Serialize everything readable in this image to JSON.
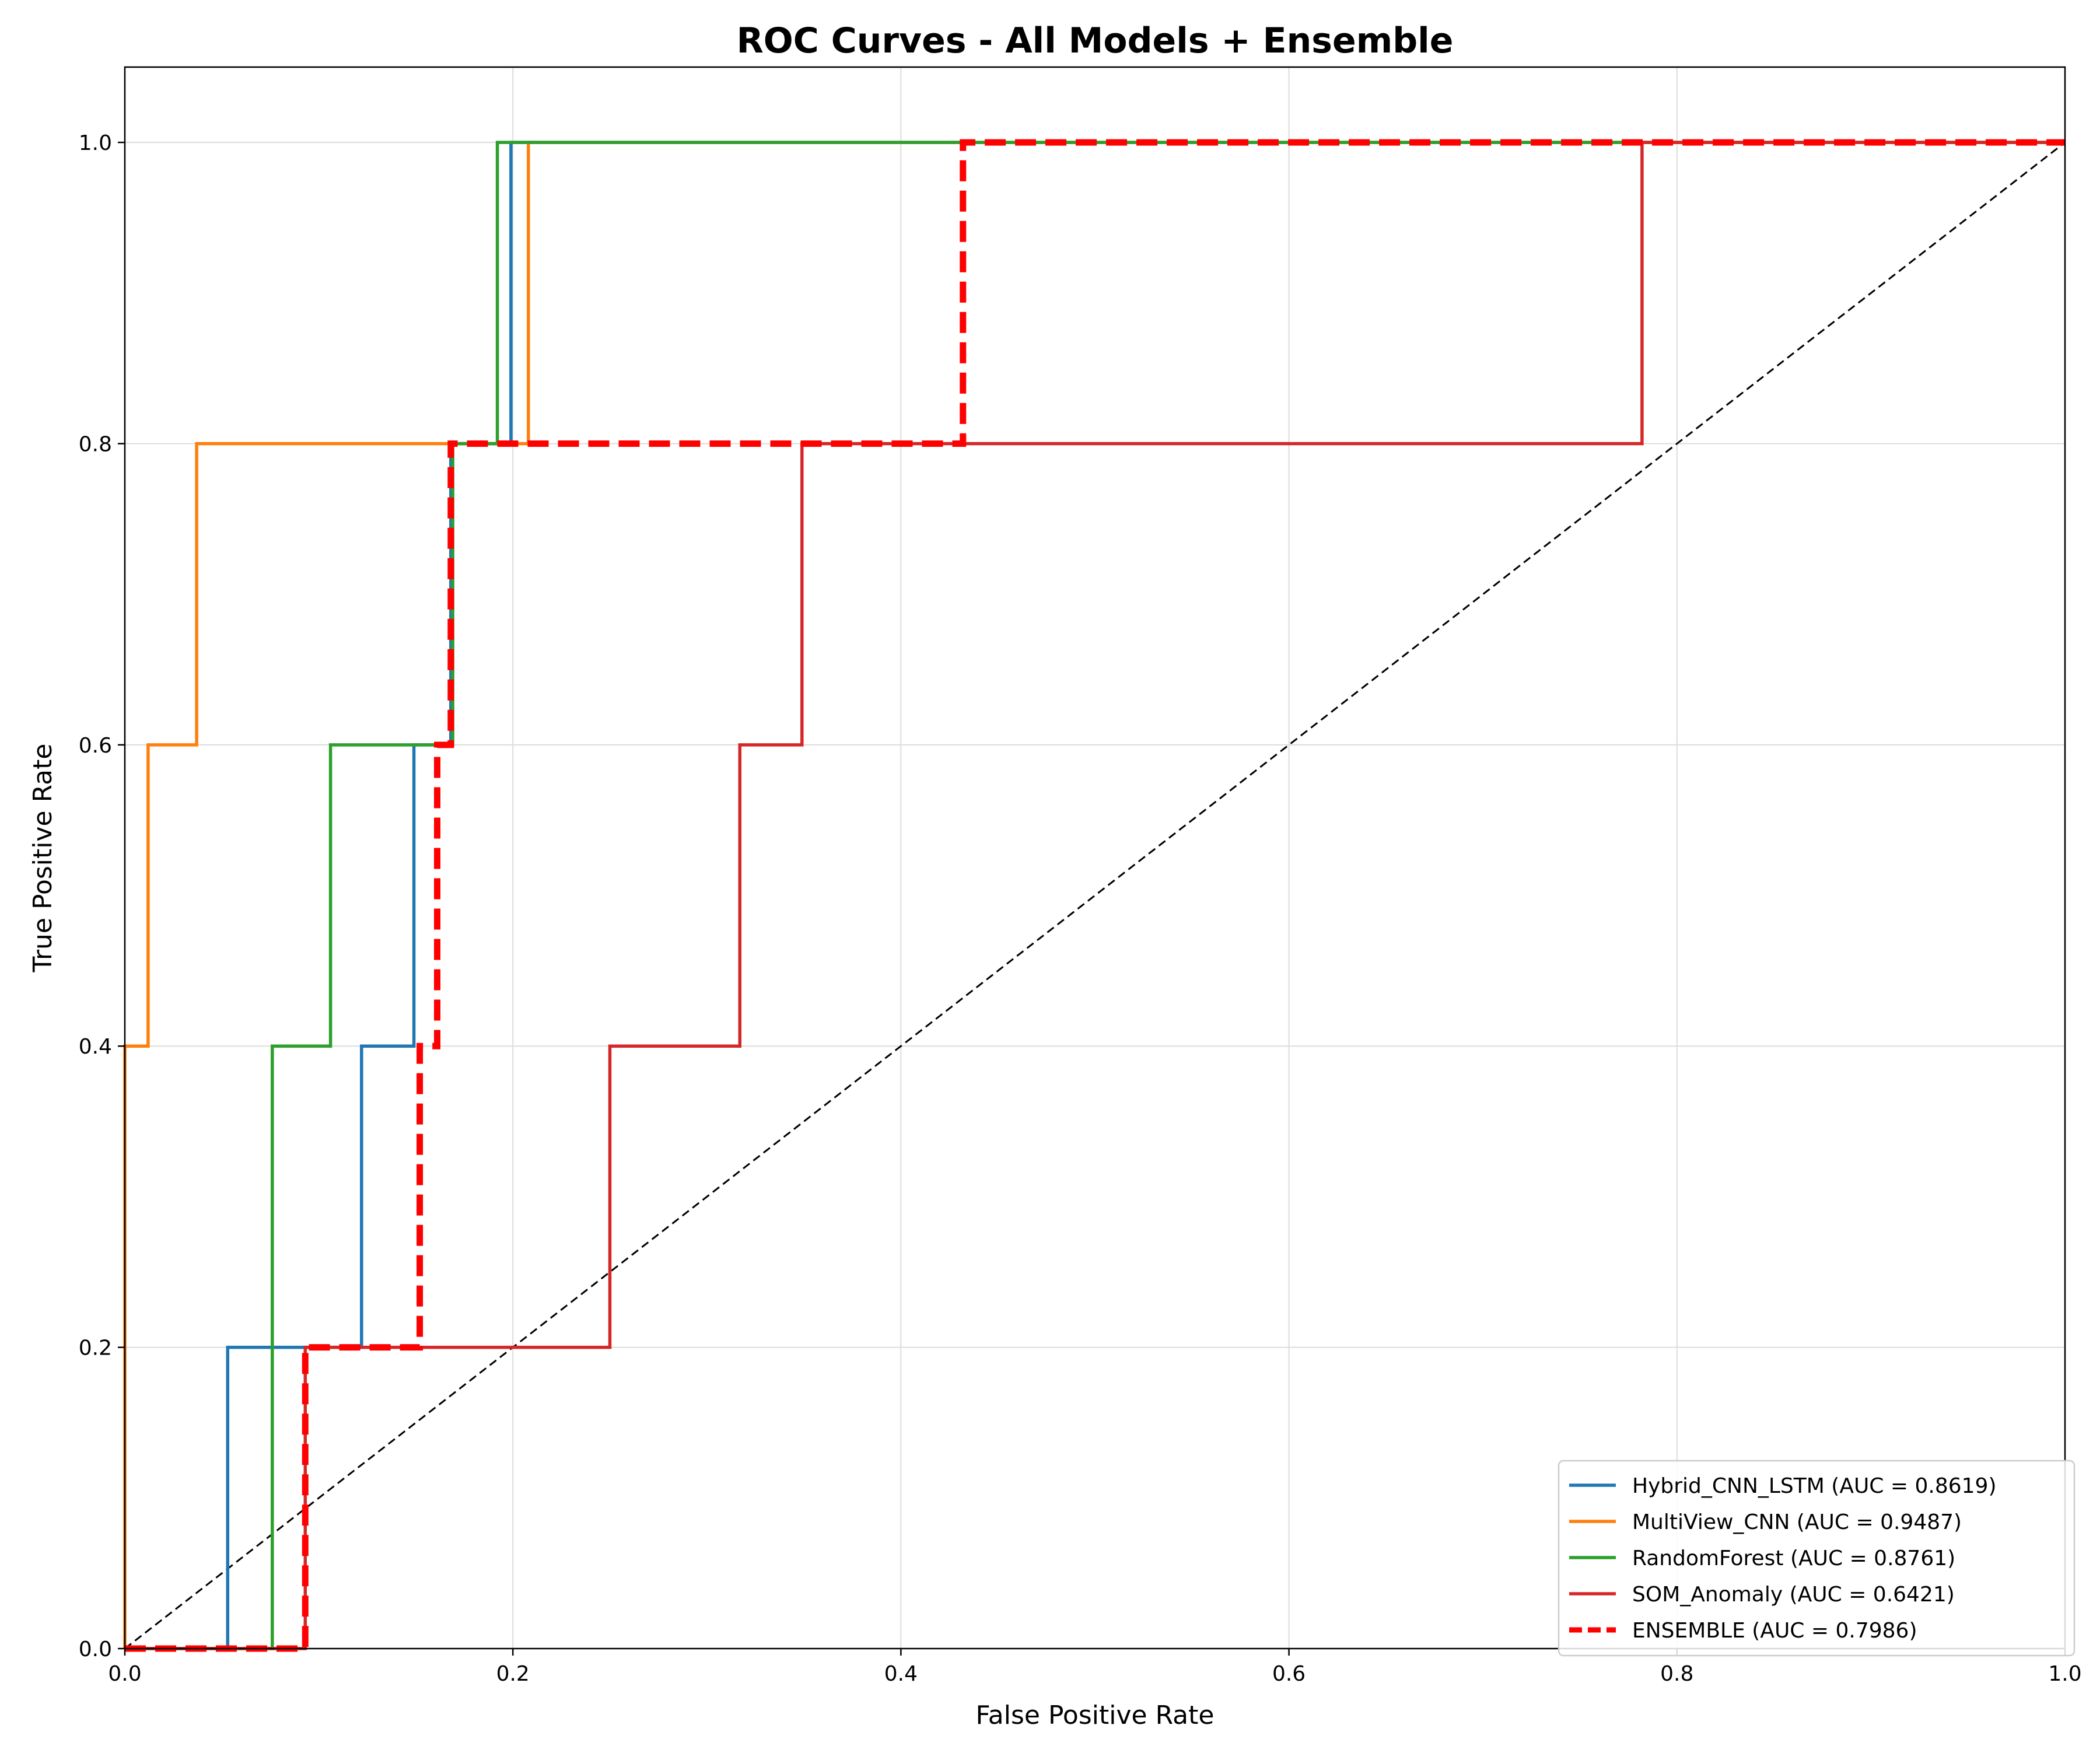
{
  "chart_data": {
    "type": "line",
    "title": "ROC Curves - All Models + Ensemble",
    "xlabel": "False Positive Rate",
    "ylabel": "True Positive Rate",
    "xlim": [
      0,
      1
    ],
    "ylim": [
      0,
      1.05
    ],
    "xticks": [
      0.0,
      0.2,
      0.4,
      0.6,
      0.8,
      1.0
    ],
    "yticks": [
      0.0,
      0.2,
      0.4,
      0.6,
      0.8,
      1.0
    ],
    "xtick_labels": [
      "0.0",
      "0.2",
      "0.4",
      "0.6",
      "0.8",
      "1.0"
    ],
    "ytick_labels": [
      "0.0",
      "0.2",
      "0.4",
      "0.6",
      "0.8",
      "1.0"
    ],
    "grid": true,
    "legend_position": "lower right",
    "series": [
      {
        "name": "Hybrid_CNN_LSTM (AUC = 0.8619)",
        "color": "#1f77b4",
        "style": "solid",
        "x": [
          0,
          0.053,
          0.053,
          0.122,
          0.122,
          0.149,
          0.149,
          0.168,
          0.168,
          0.199,
          0.199,
          1.0
        ],
        "y": [
          0,
          0,
          0.2,
          0.2,
          0.4,
          0.4,
          0.6,
          0.6,
          0.8,
          0.8,
          1.0,
          1.0
        ]
      },
      {
        "name": "MultiView_CNN (AUC = 0.9487)",
        "color": "#ff7f0e",
        "style": "solid",
        "x": [
          0,
          0,
          0.012,
          0.012,
          0.037,
          0.037,
          0.208,
          0.208,
          1.0
        ],
        "y": [
          0,
          0.4,
          0.4,
          0.6,
          0.6,
          0.8,
          0.8,
          1.0,
          1.0
        ]
      },
      {
        "name": "RandomForest (AUC = 0.8761)",
        "color": "#2ca02c",
        "style": "solid",
        "x": [
          0,
          0.076,
          0.076,
          0.106,
          0.106,
          0.169,
          0.169,
          0.192,
          0.192,
          1.0
        ],
        "y": [
          0,
          0,
          0.4,
          0.4,
          0.6,
          0.6,
          0.8,
          0.8,
          1.0,
          1.0
        ]
      },
      {
        "name": "SOM_Anomaly (AUC = 0.6421)",
        "color": "#d62728",
        "style": "solid",
        "x": [
          0,
          0.093,
          0.093,
          0.25,
          0.25,
          0.317,
          0.317,
          0.349,
          0.349,
          0.782,
          0.782,
          1.0
        ],
        "y": [
          0,
          0,
          0.2,
          0.2,
          0.4,
          0.4,
          0.6,
          0.6,
          0.8,
          0.8,
          1.0,
          1.0
        ]
      },
      {
        "name": "ENSEMBLE (AUC = 0.7986)",
        "color": "#ff0000",
        "style": "dashed",
        "x": [
          0,
          0.093,
          0.093,
          0.152,
          0.152,
          0.161,
          0.161,
          0.168,
          0.168,
          0.432,
          0.432,
          1.0
        ],
        "y": [
          0,
          0,
          0.2,
          0.2,
          0.4,
          0.4,
          0.6,
          0.6,
          0.8,
          0.8,
          1.0,
          1.0
        ]
      },
      {
        "name": "",
        "color": "#000000",
        "style": "diagonal",
        "x": [
          0,
          1
        ],
        "y": [
          0,
          1
        ]
      }
    ]
  }
}
